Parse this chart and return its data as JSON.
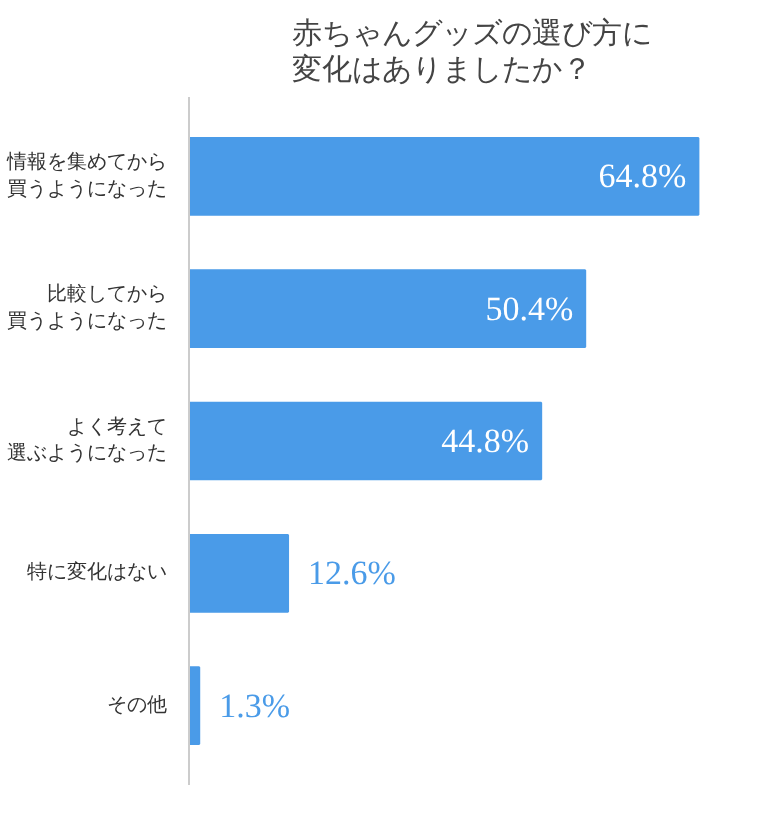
{
  "chart_data": {
    "type": "bar",
    "orientation": "horizontal",
    "title": "赤ちゃんグッズの選び方に変化はありましたか？",
    "categories": [
      "情報を集めてから買うようになった",
      "比較してから買うようになった",
      "よく考えて選ぶようになった",
      "特に変化はない",
      "その他"
    ],
    "values": [
      64.8,
      50.4,
      44.8,
      12.6,
      1.3
    ],
    "value_labels": [
      "64.8%",
      "50.4%",
      "44.8%",
      "12.6%",
      "1.3%"
    ],
    "color": "#4a9be8",
    "tick_labels": "y",
    "grid": false
  }
}
